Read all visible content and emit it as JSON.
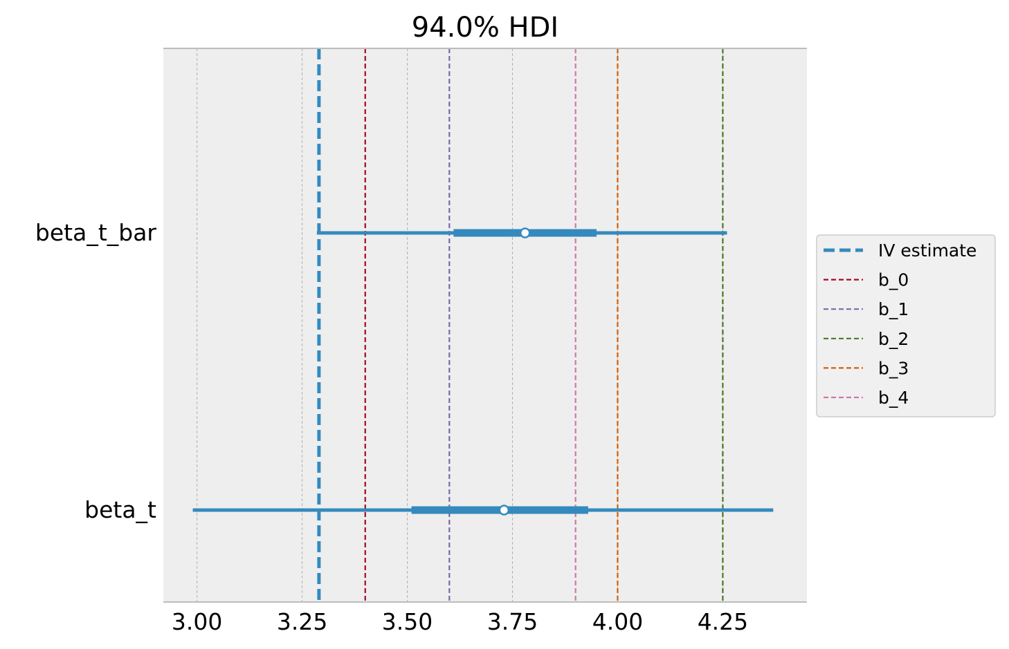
{
  "chart_data": {
    "type": "forest",
    "title": "94.0% HDI",
    "xlabel": "",
    "ylabel": "",
    "xlim": [
      2.92,
      4.45
    ],
    "x_ticks": [
      3.0,
      3.25,
      3.5,
      3.75,
      4.0,
      4.25
    ],
    "x_tick_labels": [
      "3.00",
      "3.25",
      "3.50",
      "3.75",
      "4.00",
      "4.25"
    ],
    "grid": "vertical",
    "legend_position": "right",
    "rows": [
      {
        "name": "beta_t_bar",
        "hdi_94": [
          3.285,
          4.26
        ],
        "iqr": [
          3.61,
          3.95
        ],
        "median": 3.78
      },
      {
        "name": "beta_t",
        "hdi_94": [
          2.99,
          4.37
        ],
        "iqr": [
          3.51,
          3.93
        ],
        "median": 3.73
      }
    ],
    "reference_lines": [
      {
        "name": "IV estimate",
        "x": 3.29,
        "color": "#348abd",
        "style": "bold-dashed"
      },
      {
        "name": "b_0",
        "x": 3.4,
        "color": "#a60628",
        "style": "dashed"
      },
      {
        "name": "b_1",
        "x": 3.6,
        "color": "#7a68a6",
        "style": "dashed"
      },
      {
        "name": "b_2",
        "x": 4.25,
        "color": "#467821",
        "style": "dashed"
      },
      {
        "name": "b_3",
        "x": 4.0,
        "color": "#d55e00",
        "style": "dashed"
      },
      {
        "name": "b_4",
        "x": 3.9,
        "color": "#cc79a7",
        "style": "dashed"
      }
    ],
    "colors": {
      "interval": "#348abd",
      "plot_background": "#eeeeee",
      "grid": "#b0b0b0",
      "axis_spine": "#bcbcbc"
    }
  }
}
